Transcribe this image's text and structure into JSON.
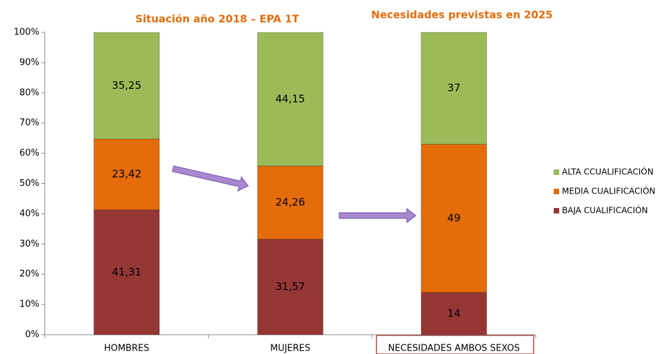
{
  "chart_data": {
    "type": "stacked_bar",
    "titles": [
      "Situación año 2018 – EPA 1T",
      "Necesidades previstas en 2025"
    ],
    "categories": [
      "HOMBRES",
      "MUJERES",
      "NECESIDADES AMBOS SEXOS"
    ],
    "series": [
      {
        "name": "BAJA CUALIFICACIÓN",
        "color": "#953735",
        "values": [
          41.31,
          31.57,
          14
        ],
        "value_labels": [
          "41,31",
          "31,57",
          "14"
        ]
      },
      {
        "name": "MEDIA CUALIFICACIÓN",
        "color": "#e46c0a",
        "values": [
          23.42,
          24.26,
          49
        ],
        "value_labels": [
          "23,42",
          "24,26",
          "49"
        ]
      },
      {
        "name": "ALTA CCUALIFICACIÓN",
        "color": "#9bbb59",
        "values": [
          35.25,
          44.15,
          37
        ],
        "value_labels": [
          "35,25",
          "44,15",
          "37"
        ]
      }
    ],
    "ylim": [
      0,
      100
    ],
    "yticks": [
      {
        "value": 0,
        "label": "0%"
      },
      {
        "value": 10,
        "label": "10%"
      },
      {
        "value": 20,
        "label": "20%"
      },
      {
        "value": 30,
        "label": "30%"
      },
      {
        "value": 40,
        "label": "40%"
      },
      {
        "value": 50,
        "label": "50%"
      },
      {
        "value": 60,
        "label": "60%"
      },
      {
        "value": 70,
        "label": "70%"
      },
      {
        "value": 80,
        "label": "80%"
      },
      {
        "value": 90,
        "label": "90%"
      },
      {
        "value": 100,
        "label": "100%"
      }
    ],
    "grid": false,
    "legend": "right"
  }
}
